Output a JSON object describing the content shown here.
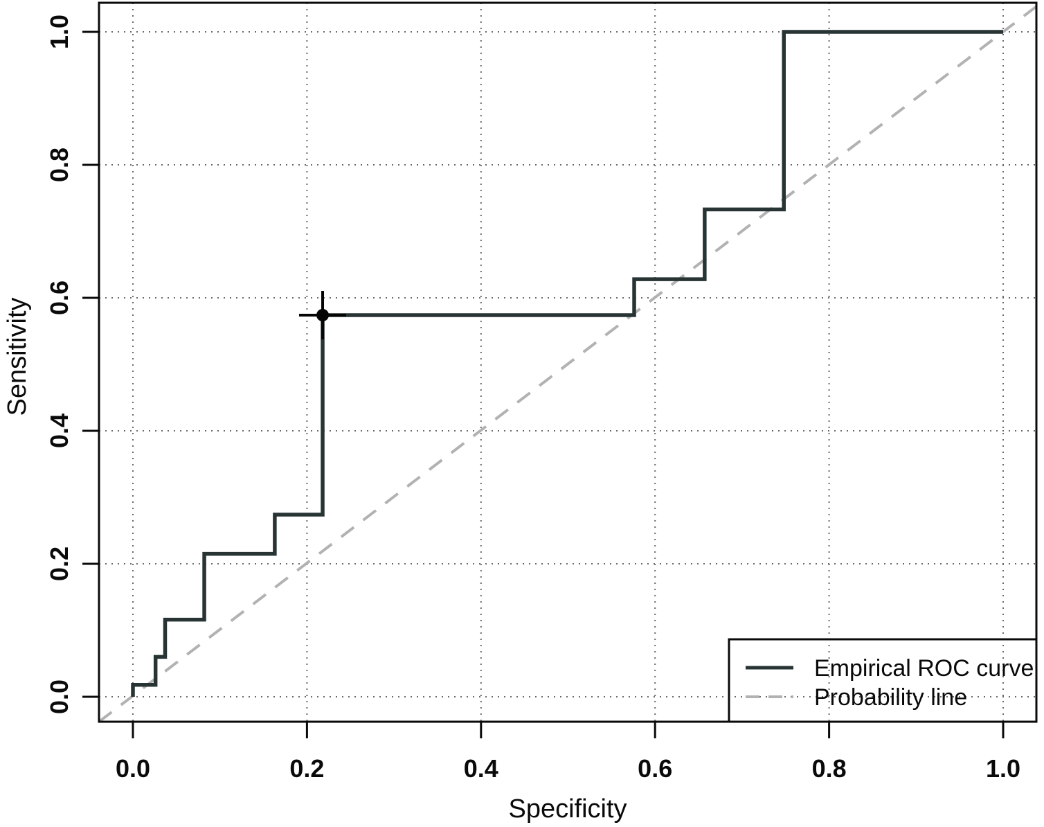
{
  "chart_data": {
    "type": "line",
    "subtype": "roc-step-plot",
    "title": "",
    "xlabel": "Specificity",
    "ylabel": "Sensitivity",
    "xlim": [
      0,
      1
    ],
    "ylim": [
      0,
      1
    ],
    "x_ticks": [
      "0.0",
      "0.2",
      "0.4",
      "0.6",
      "0.8",
      "1.0"
    ],
    "y_ticks": [
      "0.0",
      "0.2",
      "0.4",
      "0.6",
      "0.8",
      "1.0"
    ],
    "tick_values": [
      0,
      0.2,
      0.4,
      0.6,
      0.8,
      1.0
    ],
    "grid": "dotted",
    "legend_position": "bottom-right",
    "series": [
      {
        "name": "Empirical ROC curve",
        "style": "solid-step",
        "color": "#283434",
        "points": [
          [
            0.0,
            0.0
          ],
          [
            0.0,
            0.018
          ],
          [
            0.026,
            0.018
          ],
          [
            0.026,
            0.06
          ],
          [
            0.037,
            0.06
          ],
          [
            0.037,
            0.116
          ],
          [
            0.082,
            0.116
          ],
          [
            0.082,
            0.215
          ],
          [
            0.163,
            0.215
          ],
          [
            0.163,
            0.274
          ],
          [
            0.218,
            0.274
          ],
          [
            0.218,
            0.574
          ],
          [
            0.576,
            0.574
          ],
          [
            0.576,
            0.628
          ],
          [
            0.657,
            0.628
          ],
          [
            0.657,
            0.733
          ],
          [
            0.748,
            0.733
          ],
          [
            0.748,
            1.0
          ],
          [
            1.0,
            1.0
          ]
        ]
      },
      {
        "name": "Probability line",
        "style": "dashed-diagonal",
        "color": "#b2b2b2",
        "points": [
          [
            0,
            0
          ],
          [
            1,
            1
          ]
        ]
      }
    ],
    "optimal_point": {
      "x": 0.218,
      "y": 0.574,
      "marker": "circle-plus",
      "color": "#050505"
    },
    "colors": {
      "axis": "#0a0a0a",
      "grid": "#6a6a6a",
      "background": "#ffffff"
    }
  }
}
